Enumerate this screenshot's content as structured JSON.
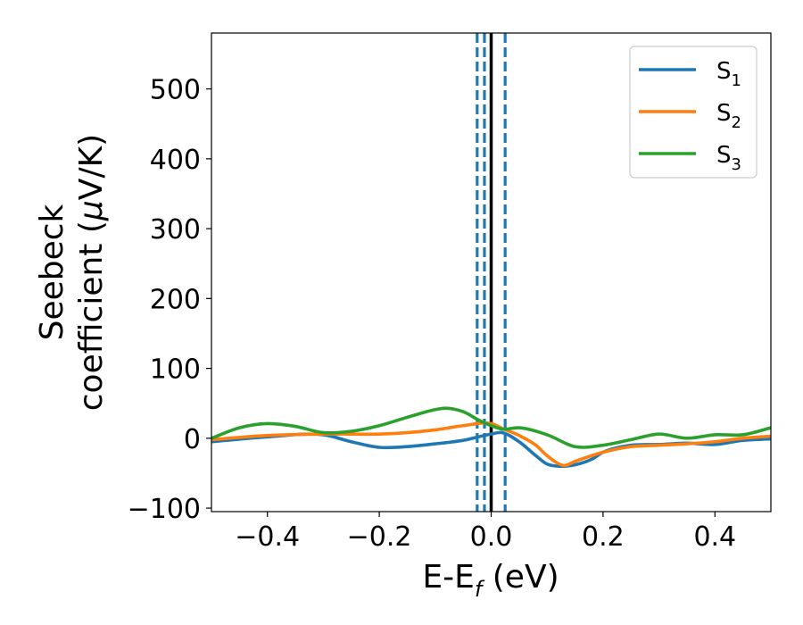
{
  "chart_data": {
    "type": "line",
    "xlabel": {
      "main": "E-E",
      "sub": "f",
      "unit": " (eV)"
    },
    "ylabel": {
      "line1": "Seebeck",
      "line2_pre": "coefficient  (",
      "mu": "μ",
      "line2_post": "V/K)"
    },
    "xlim": [
      -0.5,
      0.5
    ],
    "ylim": [
      -105,
      580
    ],
    "x_ticks": [
      -0.4,
      -0.2,
      0.0,
      0.2,
      0.4
    ],
    "x_tick_labels": [
      "−0.4",
      "−0.2",
      "0.0",
      "0.2",
      "0.4"
    ],
    "y_ticks": [
      -100,
      0,
      100,
      200,
      300,
      400,
      500
    ],
    "y_tick_labels": [
      "−100",
      "0",
      "100",
      "200",
      "300",
      "400",
      "500"
    ],
    "grid": false,
    "legend_position": "top-right",
    "vlines": [
      {
        "x": 0.0,
        "style": "solid",
        "color": "#000000"
      },
      {
        "x": -0.025,
        "style": "dashed",
        "color": "#1f77b4"
      },
      {
        "x": -0.012,
        "style": "dashed",
        "color": "#1f77b4"
      },
      {
        "x": 0.025,
        "style": "dashed",
        "color": "#1f77b4"
      }
    ],
    "series": [
      {
        "name": "S",
        "sub": "1",
        "color": "#1f77b4",
        "x": [
          -0.5,
          -0.4,
          -0.3,
          -0.25,
          -0.2,
          -0.15,
          -0.1,
          -0.05,
          0.0,
          0.02,
          0.05,
          0.08,
          0.1,
          0.12,
          0.15,
          0.18,
          0.2,
          0.25,
          0.3,
          0.35,
          0.4,
          0.45,
          0.5
        ],
        "y": [
          -5,
          2,
          5,
          -5,
          -13,
          -12,
          -8,
          -3,
          6,
          8,
          -5,
          -25,
          -37,
          -40,
          -38,
          -30,
          -20,
          -10,
          -9,
          -7,
          -9,
          -3,
          -1
        ]
      },
      {
        "name": "S",
        "sub": "2",
        "color": "#ff7f0e",
        "x": [
          -0.5,
          -0.4,
          -0.3,
          -0.2,
          -0.15,
          -0.1,
          -0.05,
          0.0,
          0.02,
          0.05,
          0.08,
          0.1,
          0.13,
          0.15,
          0.2,
          0.25,
          0.3,
          0.35,
          0.4,
          0.45,
          0.5
        ],
        "y": [
          -2,
          4,
          6,
          6,
          8,
          12,
          18,
          21,
          14,
          4,
          -10,
          -25,
          -39,
          -33,
          -20,
          -12,
          -10,
          -8,
          -5,
          0,
          3
        ]
      },
      {
        "name": "S",
        "sub": "3",
        "color": "#2ca02c",
        "x": [
          -0.5,
          -0.45,
          -0.4,
          -0.35,
          -0.3,
          -0.25,
          -0.2,
          -0.15,
          -0.1,
          -0.08,
          -0.05,
          -0.02,
          0.0,
          0.02,
          0.05,
          0.1,
          0.15,
          0.2,
          0.25,
          0.3,
          0.35,
          0.4,
          0.45,
          0.5
        ],
        "y": [
          0,
          15,
          21,
          17,
          8,
          10,
          18,
          30,
          41,
          43,
          38,
          25,
          18,
          13,
          15,
          5,
          -12,
          -10,
          -2,
          6,
          0,
          5,
          5,
          15
        ]
      }
    ]
  }
}
